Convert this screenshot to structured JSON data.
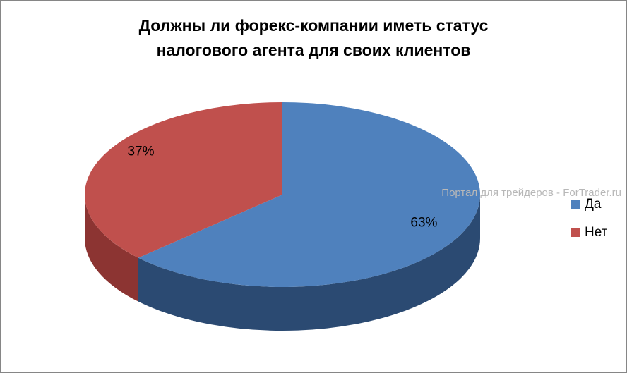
{
  "chart_data": {
    "type": "pie",
    "title": [
      "Должны  ли форекс-компании иметь статус",
      "налогового агента для своих клиентов"
    ],
    "watermark": "Портал для трейдеров - ForTrader.ru",
    "categories": [
      "Да",
      "Нет"
    ],
    "values": [
      63,
      37
    ],
    "value_labels": [
      "63%",
      "37%"
    ],
    "colors": [
      "#4f81bd",
      "#c0504d"
    ],
    "side_colors": [
      "#2b4a72",
      "#8c3432"
    ],
    "legend": "right"
  }
}
